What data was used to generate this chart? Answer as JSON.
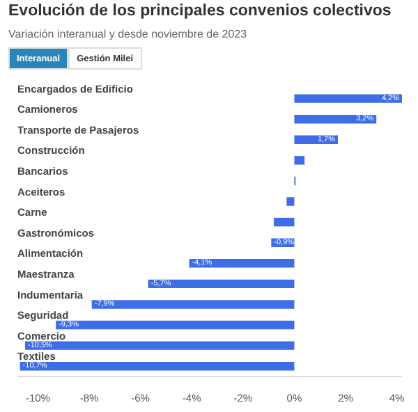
{
  "chart_data": {
    "type": "bar",
    "orientation": "horizontal",
    "title": "Evolución de los principales convenios colectivos",
    "subtitle": "Variación interanual y desde noviembre de 2023",
    "annotations": [
      "Interanual",
      "Gestión Milei"
    ],
    "categories": [
      "Encargados de Edificio",
      "Camioneros",
      "Transporte de Pasajeros",
      "Construcción",
      "Bancarios",
      "Aceiteros",
      "Carne",
      "Gastronómicos",
      "Alimentación",
      "Maestranza",
      "Indumentaria",
      "Seguridad",
      "Comercio",
      "Textiles"
    ],
    "values": [
      4.2,
      3.2,
      1.7,
      0.4,
      0.05,
      -0.3,
      -0.8,
      -0.9,
      -4.1,
      -5.7,
      -7.9,
      -9.3,
      -10.5,
      -10.7
    ],
    "value_labels": [
      "4,2%",
      "3,2%",
      "1,7%",
      null,
      null,
      null,
      null,
      "-0,9%",
      "-4,1%",
      "-5,7%",
      "-7,9%",
      "-9,3%",
      "-10,5%",
      "-10,7%"
    ],
    "color": "#3d6ee8",
    "xlim": [
      -10.8,
      4.2
    ],
    "xticks": [
      {
        "value": -10,
        "label": "-10%"
      },
      {
        "value": -8,
        "label": "-8%"
      },
      {
        "value": -6,
        "label": "-6%"
      },
      {
        "value": -4,
        "label": "-4%"
      },
      {
        "value": -2,
        "label": "-2%"
      },
      {
        "value": 0,
        "label": "0%"
      },
      {
        "value": 2,
        "label": "2%"
      },
      {
        "value": 4,
        "label": "4%"
      }
    ],
    "grid": false
  }
}
